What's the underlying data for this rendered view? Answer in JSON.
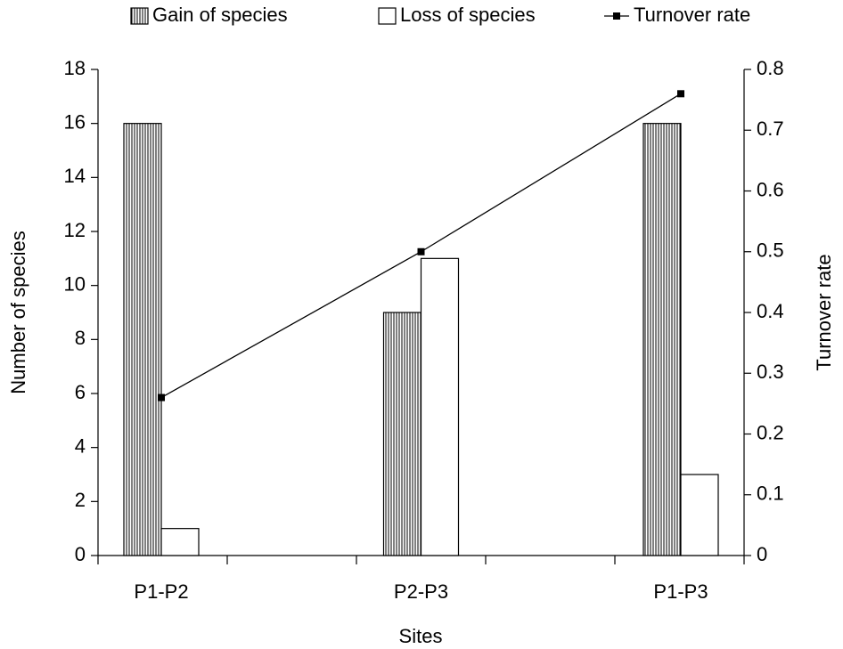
{
  "chart_data": {
    "type": "bar",
    "x_label": "Sites",
    "y_label": "Number of species",
    "y2_label": "Turnover rate",
    "categories": [
      "P1-P2",
      "P2-P3",
      "P1-P3"
    ],
    "series": [
      {
        "name": "Gain of species",
        "color": "#000000",
        "pattern": "vertical-hatch",
        "values": [
          16,
          9,
          16
        ]
      },
      {
        "name": "Loss of species",
        "color": "#ffffff",
        "values": [
          1,
          11,
          3
        ]
      },
      {
        "name": "Turnover rate",
        "type": "line",
        "axis": "y2",
        "color": "#000000",
        "values": [
          0.26,
          0.5,
          0.76
        ]
      }
    ],
    "ylim": [
      0,
      18
    ],
    "yticks": [
      0,
      2,
      4,
      6,
      8,
      10,
      12,
      14,
      16,
      18
    ],
    "y2lim": [
      0,
      0.8
    ],
    "y2ticks": [
      0,
      0.1,
      0.2,
      0.3,
      0.4,
      0.5,
      0.6,
      0.7,
      0.8
    ],
    "legend": "top"
  }
}
